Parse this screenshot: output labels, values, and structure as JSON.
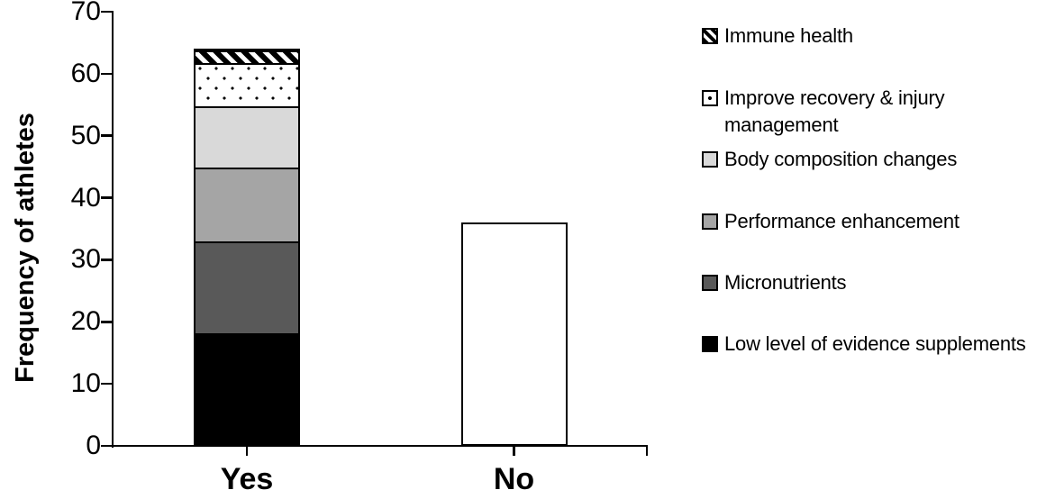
{
  "figure": {
    "background_color": "#ffffff",
    "text_color": "#000000"
  },
  "chart_data": {
    "type": "stacked-bar",
    "title": "",
    "xlabel": "",
    "ylabel": "Frequency of athletes",
    "ylim": [
      0,
      70
    ],
    "ytick_interval": 10,
    "ytick_labels": [
      "0",
      "10",
      "20",
      "30",
      "40",
      "50",
      "60",
      "70"
    ],
    "grid": false,
    "categories": [
      "Yes",
      "No"
    ],
    "series": [
      {
        "name": "Low level of evidence supplements",
        "pattern": "solid",
        "color": "#000000",
        "values": [
          18,
          0
        ]
      },
      {
        "name": "Micronutrients",
        "pattern": "solid",
        "color": "#595959",
        "values": [
          15,
          0
        ]
      },
      {
        "name": "Performance enhancement",
        "pattern": "solid",
        "color": "#a5a5a5",
        "values": [
          12,
          0
        ]
      },
      {
        "name": "Body composition changes",
        "pattern": "solid",
        "color": "#d9d9d9",
        "values": [
          10,
          0
        ]
      },
      {
        "name": "Improve recovery & injury management",
        "pattern": "dots",
        "color": "#ffffff",
        "values": [
          7,
          0
        ]
      },
      {
        "name": "Immune health",
        "pattern": "diagonal-stripes",
        "color": "#ffffff",
        "values": [
          2,
          0
        ]
      }
    ],
    "unsegmented_bar": {
      "category": "No",
      "value": 36,
      "fill": "#ffffff",
      "border": "#000000"
    },
    "bar_totals": {
      "Yes": 64,
      "No": 36
    },
    "legend": {
      "position": "right",
      "order_top_to_bottom": [
        "Immune health",
        "Improve recovery & injury management",
        "Body composition changes",
        "Performance enhancement",
        "Micronutrients",
        "Low level of evidence supplements"
      ]
    }
  }
}
